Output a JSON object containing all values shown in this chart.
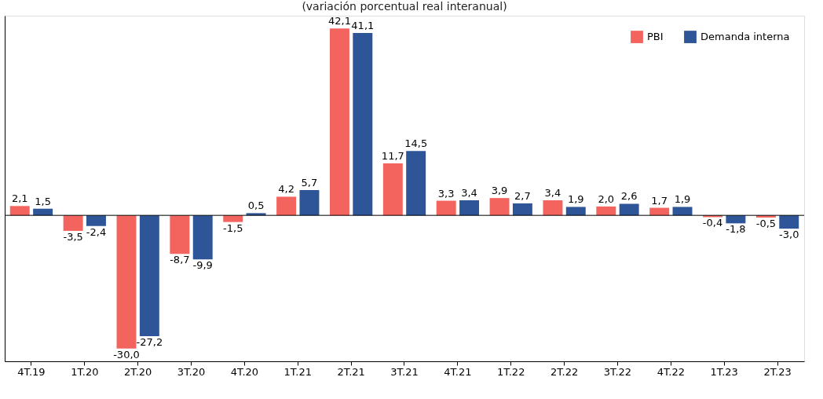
{
  "chart_data": {
    "type": "bar",
    "subtitle": "(variación porcentual real interanual)",
    "categories": [
      "4T.19",
      "1T.20",
      "2T.20",
      "3T.20",
      "4T.20",
      "1T.21",
      "2T.21",
      "3T.21",
      "4T.21",
      "1T.22",
      "2T.22",
      "3T.22",
      "4T.22",
      "1T.23",
      "2T.23"
    ],
    "series": [
      {
        "name": "PBI",
        "color": "#f4645f",
        "values": [
          2.1,
          -3.5,
          -30.0,
          -8.7,
          -1.5,
          4.2,
          42.1,
          11.7,
          3.3,
          3.9,
          3.4,
          2.0,
          1.7,
          -0.4,
          -0.5
        ],
        "value_labels": [
          "2,1",
          "-3,5",
          "-30,0",
          "-8,7",
          "-1,5",
          "4,2",
          "42,1",
          "11,7",
          "3,3",
          "3,9",
          "3,4",
          "2,0",
          "1,7",
          "-0,4",
          "-0,5"
        ]
      },
      {
        "name": "Demanda interna",
        "color": "#2e5597",
        "values": [
          1.5,
          -2.4,
          -27.2,
          -9.9,
          0.5,
          5.7,
          41.1,
          14.5,
          3.4,
          2.7,
          1.9,
          2.6,
          1.9,
          -1.8,
          -3.0
        ],
        "value_labels": [
          "1,5",
          "-2,4",
          "-27,2",
          "-9,9",
          "0,5",
          "5,7",
          "41,1",
          "14,5",
          "3,4",
          "2,7",
          "1,9",
          "2,6",
          "1,9",
          "-1,8",
          "-3,0"
        ]
      }
    ],
    "legend": "top right",
    "grid": false
  }
}
